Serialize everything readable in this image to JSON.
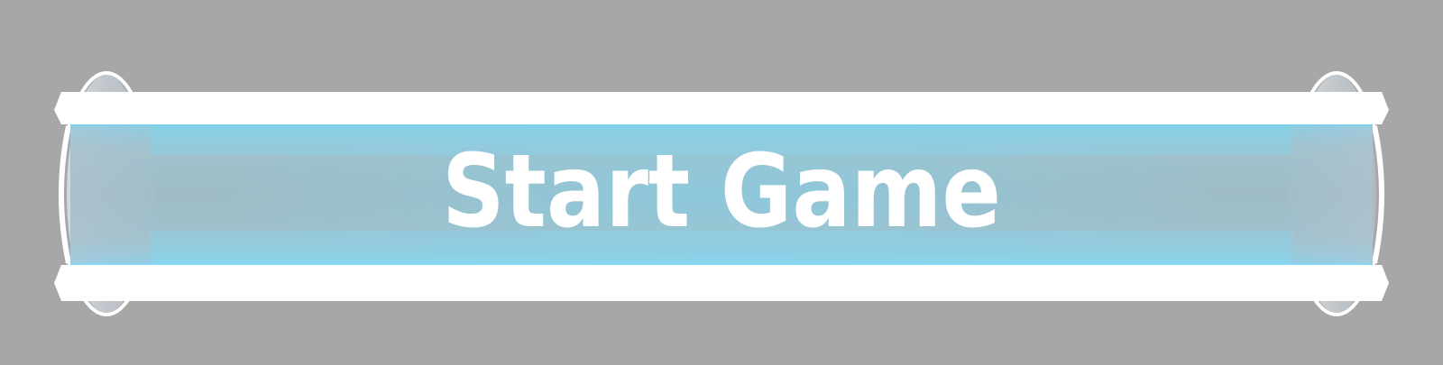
{
  "menu": {
    "start_button": {
      "label": "Start Game",
      "state": "highlighted"
    }
  },
  "colors": {
    "background": "#a7a7a7",
    "frame": "#ffffff",
    "glass": "#9fbcc6",
    "glow": "#76d2ef",
    "end_cap": "#c4c8cc",
    "label": "#ffffff"
  },
  "icons": {
    "left_cap": "capsule-end-cap",
    "right_cap": "capsule-end-cap"
  }
}
